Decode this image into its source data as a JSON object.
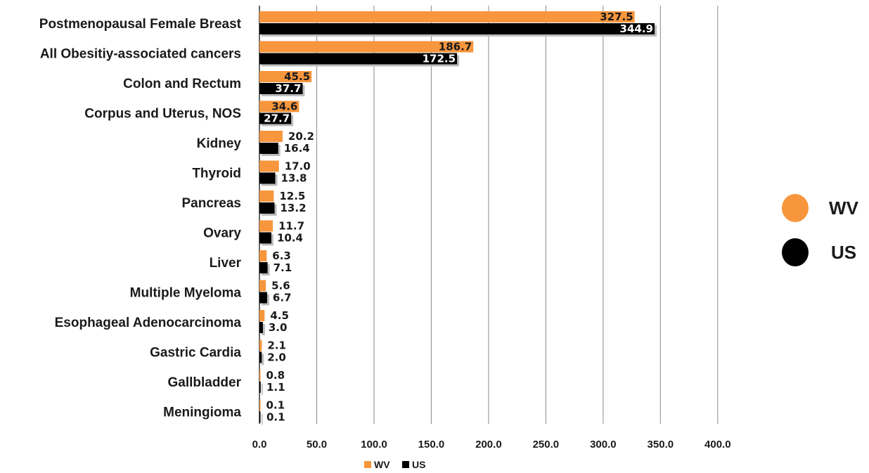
{
  "chart_data": {
    "type": "bar",
    "orientation": "horizontal",
    "categories": [
      "Postmenopausal Female Breast",
      "All Obesitiy-associated cancers",
      "Colon and Rectum",
      "Corpus and Uterus, NOS",
      "Kidney",
      "Thyroid",
      "Pancreas",
      "Ovary",
      "Liver",
      "Multiple Myeloma",
      "Esophageal Adenocarcinoma",
      "Gastric Cardia",
      "Gallbladder",
      "Meningioma"
    ],
    "series": [
      {
        "name": "WV",
        "color": "#f7963c",
        "values": [
          327.5,
          186.7,
          45.5,
          34.6,
          20.2,
          17.0,
          12.5,
          11.7,
          6.3,
          5.6,
          4.5,
          2.1,
          0.8,
          0.1
        ],
        "labels": [
          "327.5",
          "186.7",
          "45.5",
          "34.6",
          "20.2",
          "17.0",
          "12.5",
          "11.7",
          "6.3",
          "5.6",
          "4.5",
          "2.1",
          "0.8",
          "0.1"
        ]
      },
      {
        "name": "US",
        "color": "#000000",
        "values": [
          344.9,
          172.5,
          37.7,
          27.7,
          16.4,
          13.8,
          13.2,
          10.4,
          7.1,
          6.7,
          3.0,
          2.0,
          1.1,
          0.1
        ],
        "labels": [
          "344.9",
          "172.5",
          "37.7",
          "27.7",
          "16.4",
          "13.8",
          "13.2",
          "10.4",
          "7.1",
          "6.7",
          "3.0",
          "2.0",
          "1.1",
          "0.1"
        ]
      }
    ],
    "x_ticks": [
      "0.0",
      "50.0",
      "100.0",
      "150.0",
      "200.0",
      "250.0",
      "300.0",
      "350.0",
      "400.0"
    ],
    "xlim": [
      0,
      400
    ],
    "grid": "vertical",
    "legend_bottom": [
      "WV",
      "US"
    ],
    "legend_side": [
      "WV",
      "US"
    ],
    "legend_placement": "bottom and right"
  }
}
